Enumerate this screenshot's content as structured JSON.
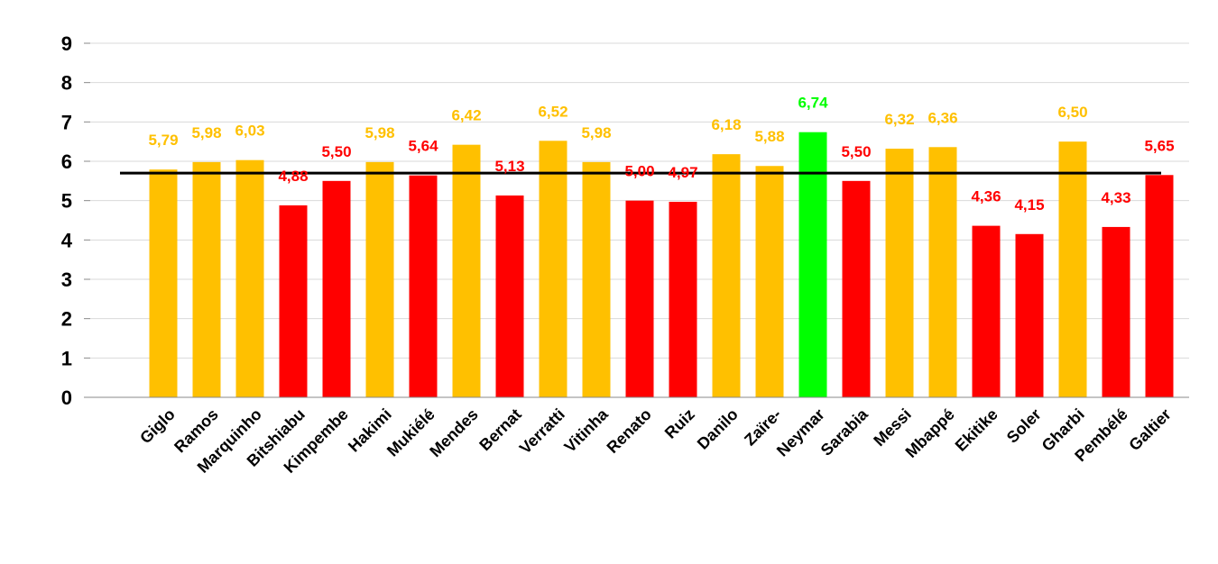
{
  "chart_data": {
    "type": "bar",
    "categories": [
      "Giglo",
      "Ramos",
      "Marquinho",
      "Bitshiabu",
      "Kimpembe",
      "Hakimi",
      "Mukiélé",
      "Mendes",
      "Bernat",
      "Verratti",
      "Vitinha",
      "Renato",
      "Ruiz",
      "Danilo",
      "Zaïre-",
      "Neymar",
      "Sarabia",
      "Messi",
      "Mbappé",
      "Ekitike",
      "Soler",
      "Gharbi",
      "Pembélé",
      "Galtier"
    ],
    "values": [
      5.79,
      5.98,
      6.03,
      4.88,
      5.5,
      5.98,
      5.64,
      6.42,
      5.13,
      6.52,
      5.98,
      5.0,
      4.97,
      6.18,
      5.88,
      6.74,
      5.5,
      6.32,
      6.36,
      4.36,
      4.15,
      6.5,
      4.33,
      5.65
    ],
    "value_labels": [
      "5,79",
      "5,98",
      "6,03",
      "4,88",
      "5,50",
      "5,98",
      "5,64",
      "6,42",
      "5,13",
      "6,52",
      "5,98",
      "5,00",
      "4,97",
      "6,18",
      "5,88",
      "6,74",
      "5,50",
      "6,32",
      "6,36",
      "4,36",
      "4,15",
      "6,50",
      "4,33",
      "5,65"
    ],
    "bar_colors": [
      "#FFC000",
      "#FFC000",
      "#FFC000",
      "#FF0000",
      "#FF0000",
      "#FFC000",
      "#FF0000",
      "#FFC000",
      "#FF0000",
      "#FFC000",
      "#FFC000",
      "#FF0000",
      "#FF0000",
      "#FFC000",
      "#FFC000",
      "#00FF00",
      "#FF0000",
      "#FFC000",
      "#FFC000",
      "#FF0000",
      "#FF0000",
      "#FFC000",
      "#FF0000",
      "#FF0000"
    ],
    "y_ticks": [
      "0",
      "1",
      "2",
      "3",
      "4",
      "5",
      "6",
      "7",
      "8",
      "9"
    ],
    "ylim": [
      0,
      9
    ],
    "reference_line": 5.7,
    "grid": true,
    "colors": {
      "gold": "#FFC000",
      "red": "#FF0000",
      "green": "#00FF00",
      "line": "#000000",
      "grid": "#D9D9D9"
    }
  }
}
